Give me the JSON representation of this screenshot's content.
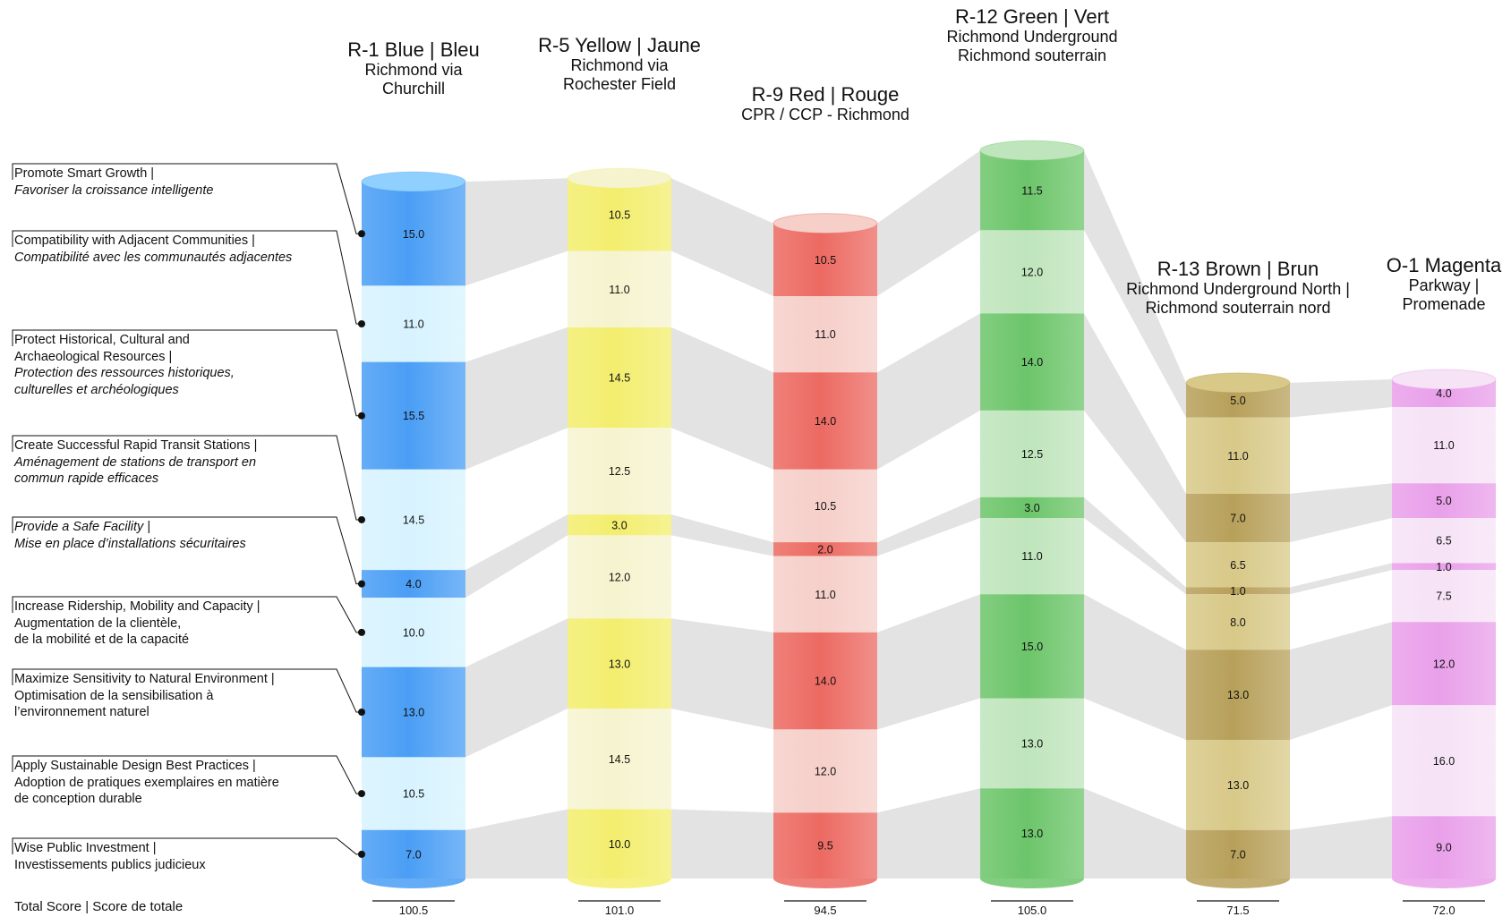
{
  "criteria": [
    {
      "en": "Promote Smart Growth |",
      "fr": "Favoriser la croissance intelligente"
    },
    {
      "en": "Compatibility with Adjacent Communities |",
      "fr": "Compatibilité avec les communautés adjacentes"
    },
    {
      "en": "Protect Historical, Cultural and",
      "en2": "Archaeological Resources |",
      "fr": "Protection des ressources historiques,",
      "fr2": "culturelles et archéologiques"
    },
    {
      "en": "Create Successful Rapid Transit Stations |",
      "fr": "Aménagement de stations de transport en",
      "fr2": "commun rapide efficaces"
    },
    {
      "en": "Provide a Safe Facility |",
      "fr": "Mise en place d’installations sécuritaires"
    },
    {
      "en": "Increase Ridership, Mobility and Capacity |",
      "fr": "Augmentation de la clientèle,",
      "fr2": "de la mobilité et de la capacité"
    },
    {
      "en": "Maximize Sensitivity to Natural Environment |",
      "fr": "Optimisation de la sensibilisation à",
      "fr2": "l’environnement naturel"
    },
    {
      "en": "Apply Sustainable Design Best Practices |",
      "fr": "Adoption de pratiques exemplaires en matière",
      "fr2": "de conception durable"
    },
    {
      "en": "Wise Public Investment |",
      "fr": "Investissements publics judicieux"
    }
  ],
  "total_label": "Total Score | Score de totale",
  "chart_data": {
    "type": "bar",
    "subtype": "stacked-column",
    "categories": [
      "Promote Smart Growth",
      "Compatibility with Adjacent Communities",
      "Protect Historical, Cultural and Archaeological Resources",
      "Create Successful Rapid Transit Stations",
      "Provide a Safe Facility",
      "Increase Ridership, Mobility and Capacity",
      "Maximize Sensitivity to Natural Environment",
      "Apply Sustainable Design Best Practices",
      "Wise Public Investment"
    ],
    "series": [
      {
        "name": "R-1 Blue | Bleu",
        "sub1": "Richmond via",
        "sub2": "Churchill",
        "color": "#4a9ef5",
        "light": "#d7f3ff",
        "values": [
          15.0,
          11.0,
          15.5,
          14.5,
          4.0,
          10.0,
          13.0,
          10.5,
          7.0
        ],
        "value_labels": [
          "15.0",
          "11.0",
          "15.5",
          "14.5",
          "4.0",
          "10.0",
          "13.0",
          "10.5",
          "7.0"
        ],
        "total": "100.5"
      },
      {
        "name": "R-5 Yellow | Jaune",
        "sub1": "Richmond via",
        "sub2": "Rochester Field",
        "color": "#f3ee6e",
        "light": "#f6f4cf",
        "values": [
          10.5,
          11.0,
          14.5,
          12.5,
          3.0,
          12.0,
          13.0,
          14.5,
          10.0
        ],
        "value_labels": [
          "10.5",
          "11.0",
          "14.5",
          "12.5",
          "3.0",
          "12.0",
          "13.0",
          "14.5",
          "10.0"
        ],
        "total": "101.0"
      },
      {
        "name": "R-9 Red | Rouge",
        "sub1": "CPR / CCP - Richmond",
        "sub2": "",
        "color": "#ec6a62",
        "light": "#f6cfc9",
        "values": [
          10.5,
          11.0,
          14.0,
          10.5,
          2.0,
          11.0,
          14.0,
          12.0,
          9.5
        ],
        "value_labels": [
          "10.5",
          "11.0",
          "14.0",
          "10.5",
          "2.0",
          "11.0",
          "14.0",
          "12.0",
          "9.5"
        ],
        "total": "94.5"
      },
      {
        "name": "R-12 Green | Vert",
        "sub1": "Richmond Underground",
        "sub2": "Richmond souterrain",
        "color": "#6cc56a",
        "light": "#bfe5bc",
        "values": [
          11.5,
          12.0,
          14.0,
          12.5,
          3.0,
          11.0,
          15.0,
          13.0,
          13.0
        ],
        "value_labels": [
          "11.5",
          "12.0",
          "14.0",
          "12.5",
          "3.0",
          "11.0",
          "15.0",
          "13.0",
          "13.0"
        ],
        "total": "105.0"
      },
      {
        "name": "R-13 Brown | Brun",
        "sub1": "Richmond Underground North |",
        "sub2": "Richmond souterrain nord",
        "color": "#b7a05a",
        "light": "#d8c988",
        "values": [
          5.0,
          11.0,
          7.0,
          6.5,
          1.0,
          8.0,
          13.0,
          13.0,
          7.0
        ],
        "value_labels": [
          "5.0",
          "11.0",
          "7.0",
          "6.5",
          "1.0",
          "8.0",
          "13.0",
          "13.0",
          "7.0"
        ],
        "total": "71.5"
      },
      {
        "name": "O-1 Magenta",
        "sub1": "Parkway |",
        "sub2": "Promenade",
        "color": "#e9a0ea",
        "light": "#f6e3f6",
        "values": [
          4.0,
          11.0,
          5.0,
          6.5,
          1.0,
          7.5,
          12.0,
          16.0,
          9.0
        ],
        "value_labels": [
          "4.0",
          "11.0",
          "5.0",
          "6.5",
          "1.0",
          "7.5",
          "12.0",
          "16.0",
          "9.0"
        ],
        "total": "72.0"
      }
    ],
    "legend": "none",
    "grid": false
  }
}
